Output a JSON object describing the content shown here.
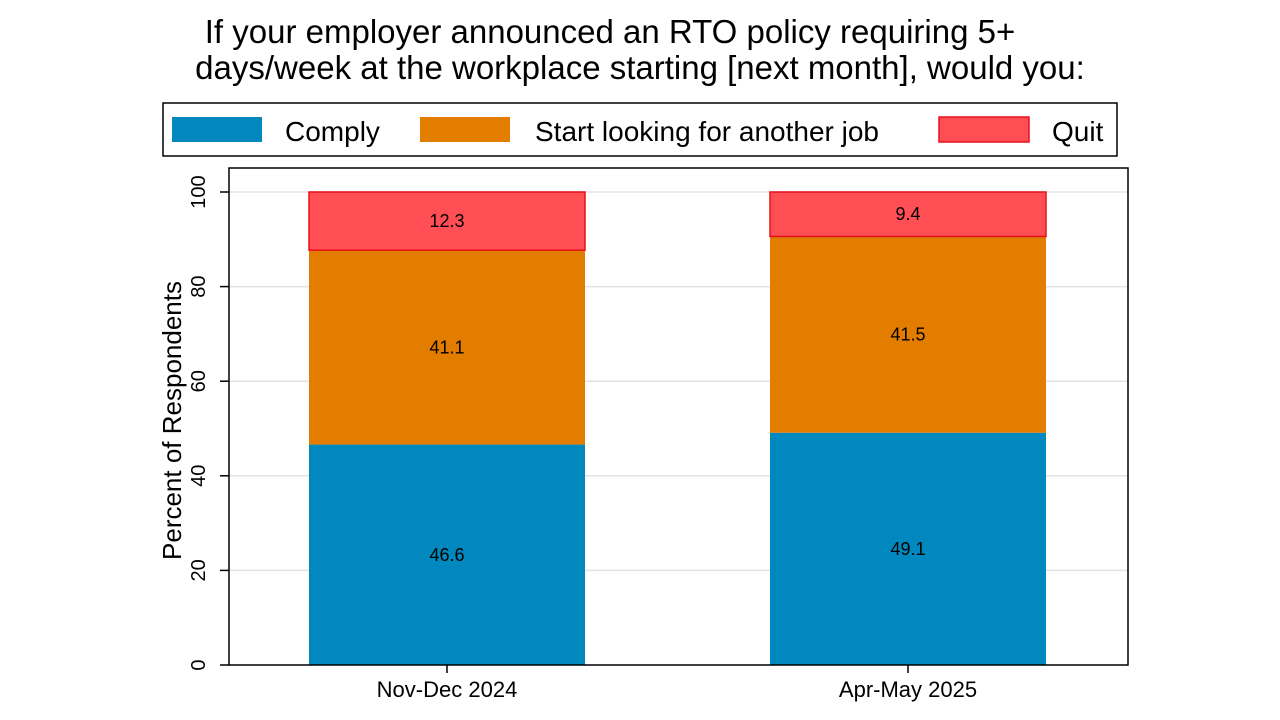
{
  "chart_data": {
    "type": "bar",
    "stacked": true,
    "title_lines": [
      "If your employer announced an RTO policy requiring 5+",
      "days/week at the workplace starting [next month], would you:"
    ],
    "categories": [
      "Nov-Dec 2024",
      "Apr-May 2025"
    ],
    "series": [
      {
        "name": "Comply",
        "values": [
          46.6,
          49.1
        ],
        "color": "#0189bf"
      },
      {
        "name": "Start looking for another job",
        "values": [
          41.1,
          41.5
        ],
        "color": "#e27d00"
      },
      {
        "name": "Quit",
        "values": [
          12.3,
          9.4
        ],
        "color": "#ff4f55"
      }
    ],
    "xlabel": "",
    "ylabel": "Percent of Respondents",
    "ylim": [
      0,
      100
    ],
    "yticks": [
      0,
      20,
      40,
      60,
      80,
      100
    ],
    "grid": true,
    "legend_position": "top"
  }
}
